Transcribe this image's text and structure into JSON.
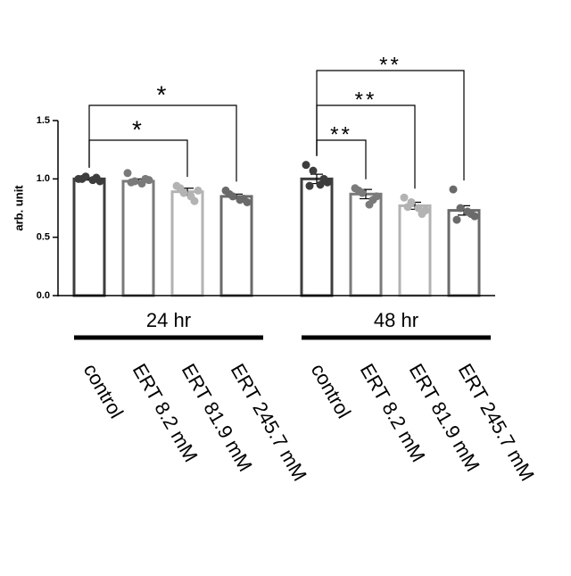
{
  "chart_data": {
    "type": "bar",
    "y_label": "arb. unit",
    "ylim": [
      0,
      1.5
    ],
    "yticks": [
      {
        "value": 0,
        "label": "0.0"
      },
      0.5,
      {
        "value": 1,
        "label": "1.0"
      },
      1.5
    ],
    "colors": [
      "#3d3d3d",
      "#7a7a7a",
      "#b3b3b3",
      "#6a6a6a"
    ],
    "groups": [
      {
        "name": "24 hr",
        "categories": [
          "control",
          "ERT 8.2 mM",
          "ERT 81.9 mM",
          "ERT 245.7 mM"
        ],
        "values": [
          1.0,
          0.98,
          0.89,
          0.85
        ],
        "errors": [
          0.01,
          0.02,
          0.03,
          0.02
        ],
        "points": [
          [
            1.0,
            1.02,
            0.99,
            0.98,
            1.0,
            1.01
          ],
          [
            1.05,
            0.98,
            0.96,
            0.99,
            0.97,
            1.0
          ],
          [
            0.94,
            0.88,
            0.85,
            0.9,
            0.92,
            0.81
          ],
          [
            0.9,
            0.85,
            0.82,
            0.8,
            0.87,
            0.83
          ]
        ],
        "significance": [
          {
            "label": "*",
            "from": 0,
            "to": 2
          },
          {
            "label": "*",
            "from": 0,
            "to": 3
          }
        ]
      },
      {
        "name": "48 hr",
        "categories": [
          "control",
          "ERT 8.2 mM",
          "ERT 81.9 mM",
          "ERT 245.7 mM"
        ],
        "values": [
          1.0,
          0.87,
          0.77,
          0.73
        ],
        "errors": [
          0.04,
          0.04,
          0.03,
          0.04
        ],
        "points": [
          [
            1.12,
            1.07,
            0.95,
            0.97,
            0.94,
            1.0
          ],
          [
            0.92,
            0.88,
            0.78,
            0.85,
            0.9,
            0.82
          ],
          [
            0.84,
            0.8,
            0.75,
            0.73,
            0.76,
            0.7
          ],
          [
            0.91,
            0.75,
            0.72,
            0.68,
            0.65,
            0.7
          ]
        ],
        "significance": [
          {
            "label": "**",
            "from": 0,
            "to": 1
          },
          {
            "label": "**",
            "from": 0,
            "to": 2
          },
          {
            "label": "**",
            "from": 0,
            "to": 3
          }
        ]
      }
    ]
  }
}
